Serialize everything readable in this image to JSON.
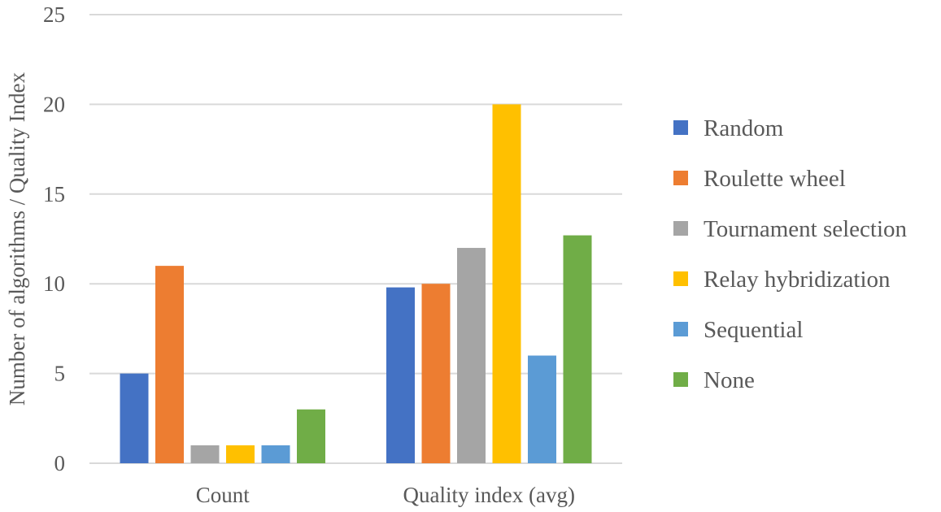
{
  "chart_data": {
    "type": "bar",
    "categories": [
      "Count",
      "Quality index (avg)"
    ],
    "series": [
      {
        "name": "Random",
        "values": [
          5,
          9.8
        ],
        "color": "#4472c4"
      },
      {
        "name": "Roulette wheel",
        "values": [
          11,
          10
        ],
        "color": "#ed7d31"
      },
      {
        "name": "Tournament selection",
        "values": [
          1,
          12
        ],
        "color": "#a5a5a5"
      },
      {
        "name": "Relay hybridization",
        "values": [
          1,
          20
        ],
        "color": "#ffc000"
      },
      {
        "name": "Sequential",
        "values": [
          1,
          6
        ],
        "color": "#5b9bd5"
      },
      {
        "name": "None",
        "values": [
          3,
          12.7
        ],
        "color": "#70ad47"
      }
    ],
    "title": "",
    "xlabel": "",
    "ylabel": "Number of algorithms / Quality Index",
    "ylim": [
      0,
      25
    ],
    "yticks": [
      "0",
      "5",
      "10",
      "15",
      "20",
      "25"
    ],
    "grid": true,
    "legend": "right"
  }
}
